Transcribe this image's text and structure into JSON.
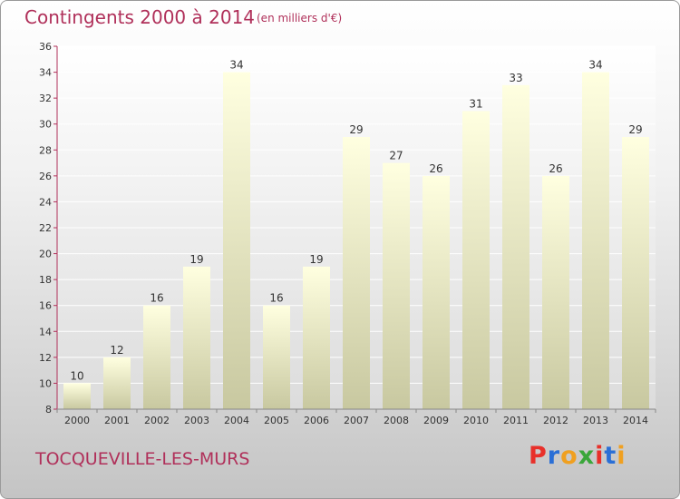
{
  "header": {
    "title": "Contingents 2000 à 2014",
    "subtitle": "(en milliers d'€)"
  },
  "footer": {
    "commune": "TOCQUEVILLE-LES-MURS",
    "logo_text": "Proxiti",
    "logo_colors": [
      "#e8302a",
      "#2a6fd6",
      "#f0a020",
      "#3aa63a",
      "#e8302a",
      "#2a6fd6",
      "#f0a020"
    ]
  },
  "colors": {
    "title": "#b0305a",
    "bar_top": "#ffffe0",
    "bar_bottom": "#c8c8a0",
    "axis": "#b0305a"
  },
  "chart_data": {
    "type": "bar",
    "title": "Contingents 2000 à 2014",
    "subtitle": "(en milliers d'€)",
    "categories": [
      "2000",
      "2001",
      "2002",
      "2003",
      "2004",
      "2005",
      "2006",
      "2007",
      "2008",
      "2009",
      "2010",
      "2011",
      "2012",
      "2013",
      "2014"
    ],
    "values": [
      10,
      12,
      16,
      19,
      34,
      16,
      19,
      29,
      27,
      26,
      31,
      33,
      26,
      34,
      29
    ],
    "ylim": [
      8,
      36
    ],
    "yticks": [
      8,
      10,
      12,
      14,
      16,
      18,
      20,
      22,
      24,
      26,
      28,
      30,
      32,
      34,
      36
    ],
    "grid": true,
    "data_labels": true
  }
}
